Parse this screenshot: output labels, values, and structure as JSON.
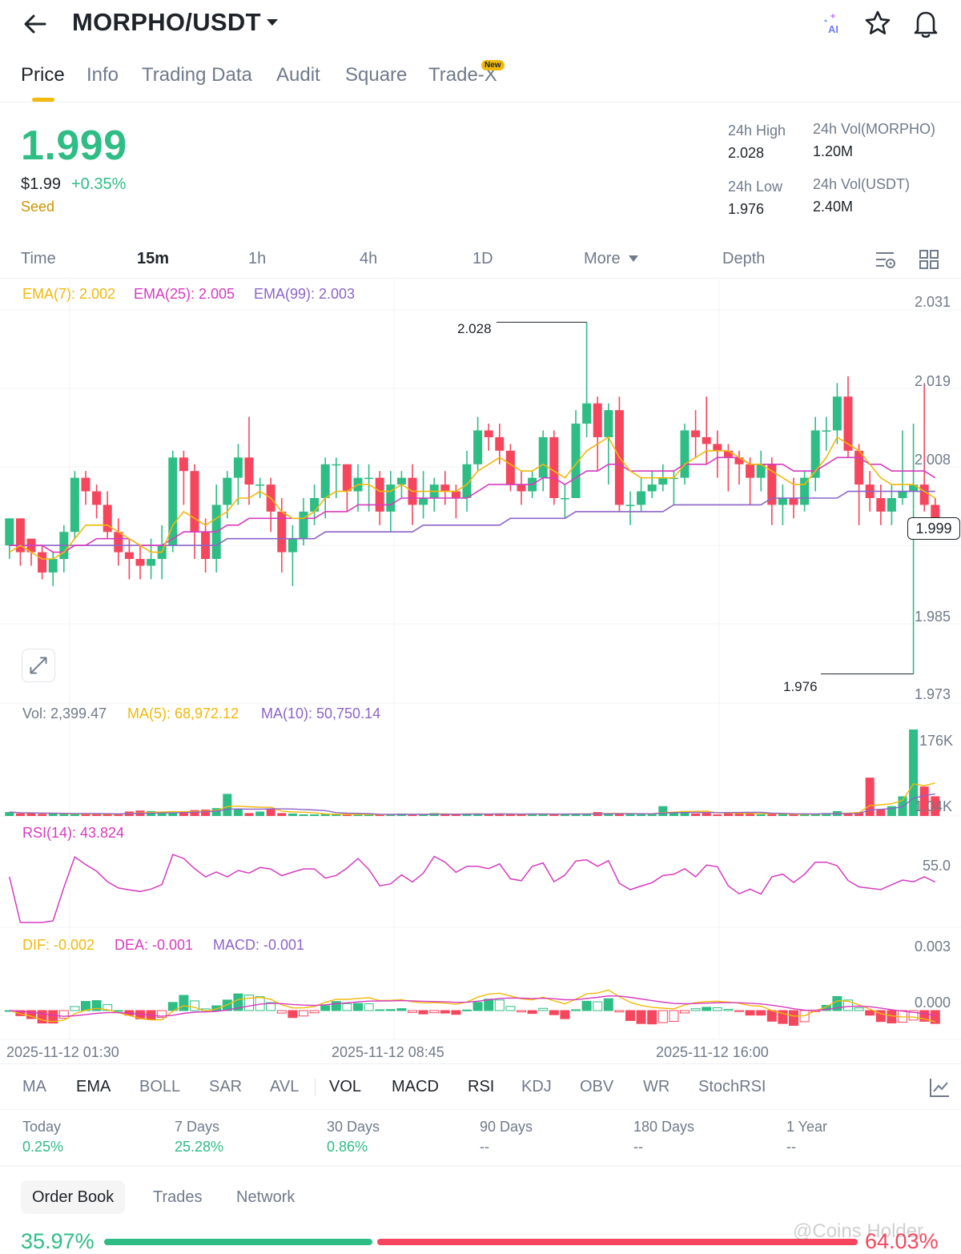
{
  "header": {
    "pair": "MORPHO/USDT",
    "tabs": [
      "Price",
      "Info",
      "Trading Data",
      "Audit",
      "Square",
      "Trade-X"
    ],
    "new_badge": "New",
    "ai_label": "AI"
  },
  "price": {
    "last": "1.999",
    "usd": "$1.99",
    "change_pct": "+0.35%",
    "tag": "Seed"
  },
  "stats": {
    "high_label": "24h High",
    "high_value": "2.028",
    "low_label": "24h Low",
    "low_value": "1.976",
    "vol_base_label": "24h Vol(MORPHO)",
    "vol_base_value": "1.20M",
    "vol_quote_label": "24h Vol(USDT)",
    "vol_quote_value": "2.40M"
  },
  "intervals": [
    "Time",
    "15m",
    "1h",
    "4h",
    "1D",
    "More",
    "Depth"
  ],
  "legends": {
    "ema7": "EMA(7): 2.002",
    "ema25": "EMA(25): 2.005",
    "ema99": "EMA(99): 2.003",
    "vol": "Vol: 2,399.47",
    "ma5": "MA(5): 68,972.12",
    "ma10": "MA(10): 50,750.14",
    "rsi": "RSI(14): 43.824",
    "dif": "DIF: -0.002",
    "dea": "DEA: -0.001",
    "macd": "MACD: -0.001"
  },
  "axes": {
    "price_ticks": [
      "2.031",
      "2.019",
      "2.008",
      "1.985",
      "1.973"
    ],
    "current_price_tag": "1.999",
    "high_marker": "2.028",
    "low_marker": "1.976",
    "vol_ticks": [
      "176K",
      "1.04K"
    ],
    "rsi_ticks": [
      "55.0"
    ],
    "macd_ticks": [
      "0.003",
      "0.000"
    ],
    "dates": [
      "2025-11-12 01:30",
      "2025-11-12 08:45",
      "2025-11-12 16:00"
    ]
  },
  "indicators": [
    "MA",
    "EMA",
    "BOLL",
    "SAR",
    "AVL",
    "VOL",
    "MACD",
    "RSI",
    "KDJ",
    "OBV",
    "WR",
    "StochRSI"
  ],
  "performance": {
    "labels": [
      "Today",
      "7 Days",
      "30 Days",
      "90 Days",
      "180 Days",
      "1 Year"
    ],
    "values": [
      "0.25%",
      "25.28%",
      "0.86%",
      "--",
      "--",
      "--"
    ]
  },
  "order_book": {
    "tabs": [
      "Order Book",
      "Trades",
      "Network"
    ],
    "bid_pct": "35.97%",
    "ask_pct": "64.03%",
    "bid_fraction": 0.3597
  },
  "watermark": "@Coins Holder",
  "colors": {
    "up": "#2ebd85",
    "down": "#f6465d",
    "ema7": "#f0b90b",
    "ema25": "#d63bbf",
    "ema99": "#8c64c8",
    "accent": "#f0b90b"
  },
  "chart_data": {
    "type": "candlestick",
    "interval": "15m",
    "ylim": [
      1.973,
      2.031
    ],
    "candles": [
      [
        1.995,
        1.999,
        1.993,
        1.999
      ],
      [
        1.999,
        1.994,
        1.992,
        1.999
      ],
      [
        1.996,
        1.994,
        1.992,
        1.996
      ],
      [
        1.994,
        1.991,
        1.99,
        1.995
      ],
      [
        1.991,
        1.993,
        1.989,
        1.994
      ],
      [
        1.993,
        1.997,
        1.991,
        1.998
      ],
      [
        1.997,
        2.005,
        1.996,
        2.006
      ],
      [
        2.005,
        2.003,
        2.001,
        2.006
      ],
      [
        2.003,
        2.001,
        1.999,
        2.004
      ],
      [
        2.001,
        1.997,
        1.996,
        2.003
      ],
      [
        1.997,
        1.994,
        1.992,
        1.999
      ],
      [
        1.994,
        1.993,
        1.99,
        1.996
      ],
      [
        1.993,
        1.992,
        1.99,
        1.995
      ],
      [
        1.992,
        1.993,
        1.99,
        1.996
      ],
      [
        1.993,
        1.995,
        1.99,
        1.998
      ],
      [
        1.995,
        2.008,
        1.994,
        2.009
      ],
      [
        2.008,
        2.006,
        2.001,
        2.009
      ],
      [
        2.006,
        1.997,
        1.993,
        2.007
      ],
      [
        1.997,
        1.993,
        1.991,
        1.999
      ],
      [
        1.993,
        2.001,
        1.991,
        2.004
      ],
      [
        2.001,
        2.005,
        1.999,
        2.006
      ],
      [
        2.005,
        2.008,
        2.001,
        2.01
      ],
      [
        2.008,
        2.004,
        2.001,
        2.014
      ],
      [
        2.004,
        2.004,
        2.002,
        2.005
      ],
      [
        2.004,
        2.0,
        1.997,
        2.005
      ],
      [
        2.0,
        1.994,
        1.991,
        2.002
      ],
      [
        1.994,
        1.996,
        1.989,
        1.998
      ],
      [
        1.996,
        2.0,
        1.995,
        2.002
      ],
      [
        2.0,
        2.002,
        1.998,
        2.004
      ],
      [
        2.002,
        2.007,
        1.999,
        2.008
      ],
      [
        2.007,
        2.007,
        2.002,
        2.008
      ],
      [
        2.007,
        2.003,
        2.0,
        2.007
      ],
      [
        2.003,
        2.005,
        2.0,
        2.007
      ],
      [
        2.005,
        2.005,
        2.0,
        2.007
      ],
      [
        2.005,
        2.0,
        1.998,
        2.006
      ],
      [
        2.0,
        2.004,
        1.997,
        2.006
      ],
      [
        2.004,
        2.005,
        2.002,
        2.006
      ],
      [
        2.005,
        2.001,
        1.998,
        2.007
      ],
      [
        2.001,
        2.002,
        1.999,
        2.006
      ],
      [
        2.002,
        2.004,
        2.0,
        2.005
      ],
      [
        2.004,
        2.003,
        2.001,
        2.006
      ],
      [
        2.003,
        2.002,
        1.999,
        2.004
      ],
      [
        2.002,
        2.007,
        2.0,
        2.009
      ],
      [
        2.007,
        2.012,
        2.006,
        2.014
      ],
      [
        2.012,
        2.011,
        2.009,
        2.013
      ],
      [
        2.011,
        2.009,
        2.007,
        2.013
      ],
      [
        2.009,
        2.004,
        2.003,
        2.01
      ],
      [
        2.004,
        2.003,
        2.001,
        2.006
      ],
      [
        2.003,
        2.005,
        2.002,
        2.006
      ],
      [
        2.005,
        2.011,
        2.003,
        2.012
      ],
      [
        2.011,
        2.002,
        2.001,
        2.012
      ],
      [
        2.002,
        2.002,
        1.999,
        2.004
      ],
      [
        2.002,
        2.013,
        2.002,
        2.015
      ],
      [
        2.013,
        2.016,
        2.011,
        2.028
      ],
      [
        2.016,
        2.011,
        2.006,
        2.017
      ],
      [
        2.011,
        2.015,
        2.004,
        2.016
      ],
      [
        2.015,
        2.001,
        2.0,
        2.017
      ],
      [
        2.001,
        2.001,
        1.998,
        2.003
      ],
      [
        2.001,
        2.003,
        2.0,
        2.005
      ],
      [
        2.003,
        2.004,
        2.002,
        2.006
      ],
      [
        2.004,
        2.005,
        2.003,
        2.007
      ],
      [
        2.005,
        2.005,
        2.001,
        2.006
      ],
      [
        2.005,
        2.012,
        2.004,
        2.013
      ],
      [
        2.012,
        2.011,
        2.008,
        2.015
      ],
      [
        2.011,
        2.01,
        2.007,
        2.017
      ],
      [
        2.01,
        2.009,
        2.005,
        2.012
      ],
      [
        2.009,
        2.008,
        2.003,
        2.01
      ],
      [
        2.008,
        2.007,
        2.004,
        2.009
      ],
      [
        2.007,
        2.005,
        2.001,
        2.008
      ],
      [
        2.005,
        2.007,
        2.003,
        2.009
      ],
      [
        2.007,
        2.001,
        1.998,
        2.008
      ],
      [
        2.001,
        2.002,
        1.998,
        2.004
      ],
      [
        2.002,
        2.001,
        1.999,
        2.005
      ],
      [
        2.001,
        2.005,
        2.0,
        2.006
      ],
      [
        2.005,
        2.012,
        2.003,
        2.014
      ],
      [
        2.012,
        2.012,
        2.009,
        2.014
      ],
      [
        2.012,
        2.017,
        2.01,
        2.019
      ],
      [
        2.017,
        2.009,
        2.008,
        2.02
      ],
      [
        2.009,
        2.004,
        1.998,
        2.01
      ],
      [
        2.004,
        2.002,
        2.0,
        2.006
      ],
      [
        2.002,
        2.0,
        1.998,
        2.004
      ],
      [
        2.0,
        2.002,
        1.998,
        2.004
      ],
      [
        2.002,
        2.003,
        2.001,
        2.012
      ],
      [
        2.003,
        2.004,
        1.976,
        2.013
      ],
      [
        2.004,
        2.001,
        2.0,
        2.019
      ],
      [
        2.001,
        1.999,
        1.998,
        2.002
      ]
    ],
    "ema7": [
      1.994,
      1.995,
      1.994,
      1.993,
      1.993,
      1.994,
      1.996,
      1.998,
      1.998,
      1.998,
      1.997,
      1.996,
      1.995,
      1.994,
      1.994,
      1.998,
      2.0,
      1.999,
      1.998,
      1.999,
      2.0,
      2.002,
      2.002,
      2.003,
      2.002,
      2.0,
      1.999,
      1.999,
      2.0,
      2.002,
      2.003,
      2.003,
      2.004,
      2.004,
      2.003,
      2.003,
      2.004,
      2.003,
      2.003,
      2.003,
      2.003,
      2.003,
      2.004,
      2.006,
      2.007,
      2.008,
      2.007,
      2.006,
      2.006,
      2.007,
      2.006,
      2.005,
      2.007,
      2.009,
      2.01,
      2.011,
      2.008,
      2.006,
      2.005,
      2.005,
      2.005,
      2.005,
      2.007,
      2.008,
      2.009,
      2.009,
      2.009,
      2.008,
      2.007,
      2.007,
      2.006,
      2.005,
      2.004,
      2.004,
      2.006,
      2.008,
      2.011,
      2.01,
      2.009,
      2.007,
      2.005,
      2.004,
      2.004,
      2.004,
      2.003,
      2.002
    ],
    "ema25": [
      1.995,
      1.995,
      1.995,
      1.995,
      1.994,
      1.994,
      1.995,
      1.995,
      1.996,
      1.996,
      1.996,
      1.996,
      1.995,
      1.995,
      1.995,
      1.996,
      1.997,
      1.997,
      1.997,
      1.997,
      1.998,
      1.998,
      1.999,
      1.999,
      1.999,
      1.999,
      1.999,
      1.999,
      1.999,
      2.0,
      2.0,
      2.0,
      2.001,
      2.001,
      2.001,
      2.001,
      2.002,
      2.002,
      2.002,
      2.002,
      2.002,
      2.002,
      2.002,
      2.003,
      2.004,
      2.004,
      2.004,
      2.004,
      2.004,
      2.005,
      2.005,
      2.004,
      2.005,
      2.006,
      2.006,
      2.007,
      2.007,
      2.006,
      2.006,
      2.006,
      2.006,
      2.006,
      2.007,
      2.007,
      2.007,
      2.008,
      2.008,
      2.008,
      2.007,
      2.007,
      2.007,
      2.007,
      2.006,
      2.006,
      2.006,
      2.007,
      2.008,
      2.008,
      2.008,
      2.007,
      2.007,
      2.006,
      2.006,
      2.006,
      2.006,
      2.005
    ],
    "ema99": [
      1.995,
      1.995,
      1.995,
      1.995,
      1.995,
      1.995,
      1.995,
      1.995,
      1.995,
      1.995,
      1.995,
      1.995,
      1.995,
      1.995,
      1.995,
      1.995,
      1.995,
      1.995,
      1.995,
      1.995,
      1.996,
      1.996,
      1.996,
      1.996,
      1.996,
      1.996,
      1.996,
      1.996,
      1.996,
      1.997,
      1.997,
      1.997,
      1.997,
      1.997,
      1.997,
      1.997,
      1.997,
      1.997,
      1.998,
      1.998,
      1.998,
      1.998,
      1.998,
      1.998,
      1.998,
      1.998,
      1.999,
      1.999,
      1.999,
      1.999,
      1.999,
      1.999,
      2.0,
      2.0,
      2.0,
      2.0,
      2.0,
      2.0,
      2.0,
      2.0,
      2.0,
      2.001,
      2.001,
      2.001,
      2.001,
      2.001,
      2.001,
      2.001,
      2.001,
      2.001,
      2.002,
      2.002,
      2.002,
      2.002,
      2.002,
      2.002,
      2.002,
      2.003,
      2.003,
      2.003,
      2.003,
      2.003,
      2.003,
      2.003,
      2.003,
      2.003
    ],
    "volume": [
      8,
      5,
      6,
      4,
      5,
      4,
      3,
      5,
      4,
      4,
      3,
      9,
      11,
      10,
      8,
      6,
      9,
      12,
      13,
      16,
      45,
      14,
      6,
      9,
      15,
      6,
      5,
      3,
      3,
      4,
      3,
      3,
      3,
      3,
      3,
      3,
      5,
      3,
      3,
      6,
      4,
      3,
      5,
      4,
      3,
      5,
      3,
      3,
      4,
      5,
      4,
      3,
      5,
      4,
      8,
      5,
      4,
      4,
      3,
      4,
      20,
      8,
      10,
      5,
      6,
      3,
      7,
      6,
      5,
      3,
      4,
      4,
      3,
      3,
      5,
      6,
      10,
      5,
      8,
      78,
      13,
      20,
      40,
      176,
      60,
      40
    ]
  }
}
